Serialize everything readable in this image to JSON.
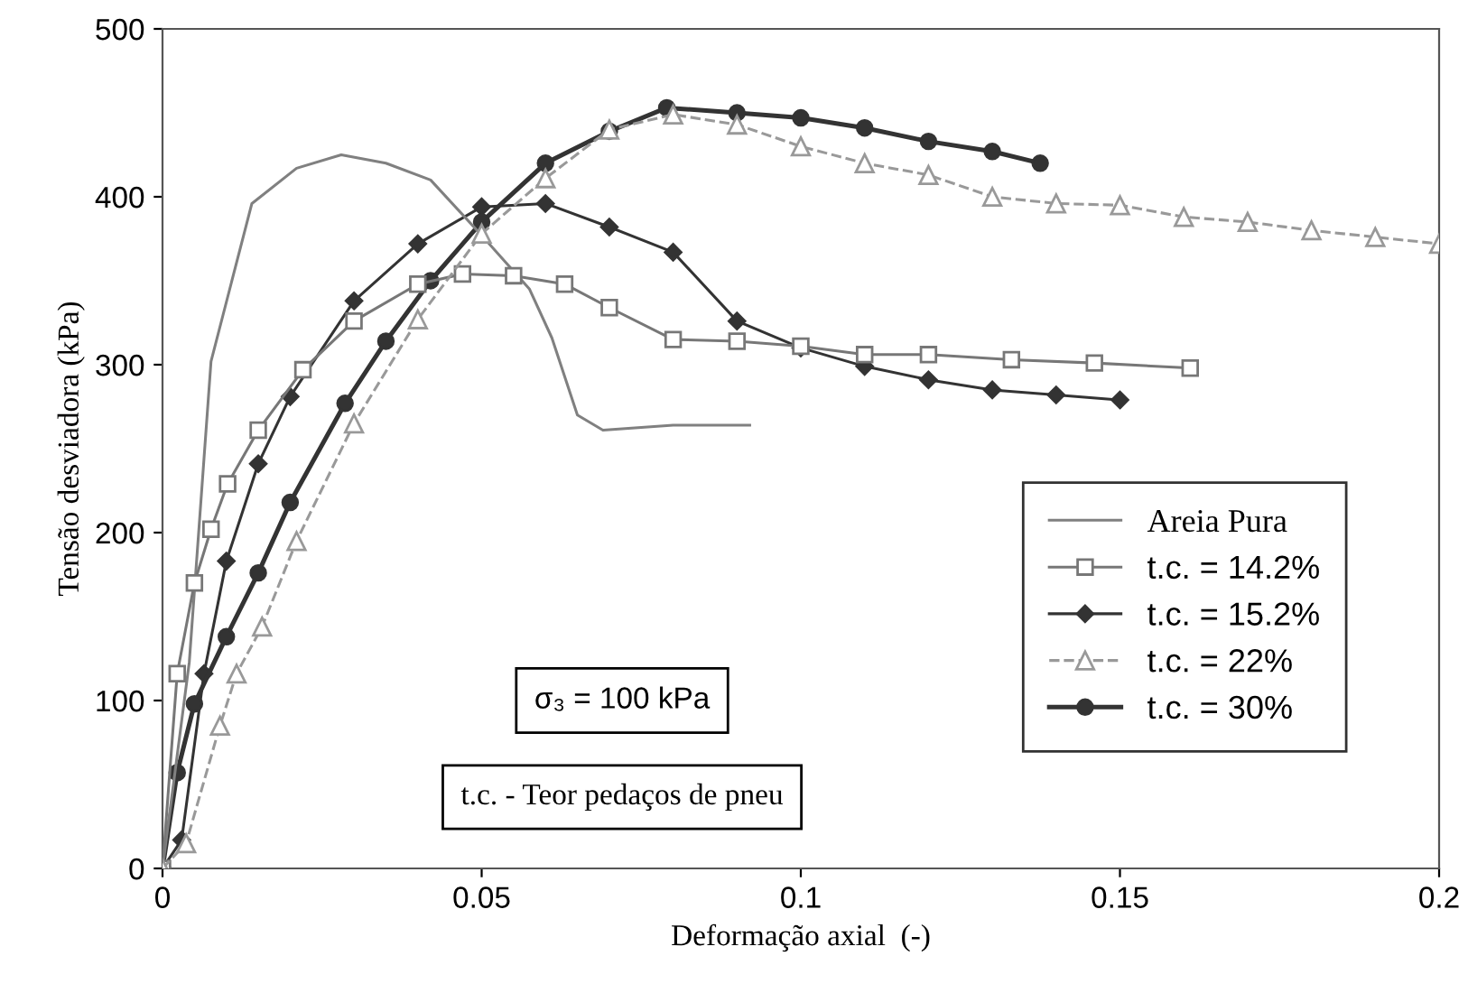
{
  "chart_data": {
    "type": "line",
    "xlabel": "Deformação axial  (-)",
    "ylabel": "Tensão desviadora (kPa)",
    "xlim": [
      0,
      0.2
    ],
    "ylim": [
      0,
      500
    ],
    "xticks": [
      0,
      0.05,
      0.1,
      0.15,
      0.2
    ],
    "yticks": [
      0,
      100,
      200,
      300,
      400,
      500
    ],
    "grid": false,
    "legend": "bottom right",
    "annotations": [
      "σ₃ = 100 kPa",
      "t.c. - Teor pedaços de pneu"
    ],
    "series": [
      {
        "name": "Areia Pura",
        "color": "#808080",
        "marker": "none",
        "line_style": "solid",
        "x": [
          0,
          0.0042,
          0.0076,
          0.014,
          0.021,
          0.028,
          0.035,
          0.042,
          0.05,
          0.0575,
          0.061,
          0.065,
          0.069,
          0.08,
          0.092
        ],
        "values": [
          0,
          123,
          302,
          396,
          417,
          425,
          420,
          410,
          377,
          345,
          316,
          270,
          261,
          264,
          264
        ]
      },
      {
        "name": "t.c. = 14.2%",
        "color": "#777777",
        "marker": "square",
        "line_style": "solid",
        "x": [
          0,
          0.0023,
          0.005,
          0.0076,
          0.0102,
          0.015,
          0.022,
          0.03,
          0.04,
          0.047,
          0.055,
          0.063,
          0.07,
          0.08,
          0.09,
          0.1,
          0.11,
          0.12,
          0.133,
          0.146,
          0.161
        ],
        "values": [
          0,
          116,
          170,
          202,
          229,
          261,
          297,
          326,
          348,
          354,
          353,
          348,
          334,
          315,
          314,
          311,
          306,
          306,
          303,
          301,
          298
        ]
      },
      {
        "name": "t.c. = 15.2%",
        "color": "#333333",
        "marker": "diamond",
        "line_style": "solid",
        "x": [
          0,
          0.003,
          0.0065,
          0.01,
          0.015,
          0.02,
          0.03,
          0.04,
          0.05,
          0.06,
          0.07,
          0.08,
          0.09,
          0.1,
          0.11,
          0.12,
          0.13,
          0.14,
          0.15
        ],
        "values": [
          0,
          17,
          116,
          183,
          241,
          281,
          338,
          372,
          394,
          396,
          382,
          367,
          326,
          310,
          299,
          291,
          285,
          282,
          279
        ]
      },
      {
        "name": "t.c. = 22%",
        "color": "#999999",
        "marker": "triangle",
        "line_style": "dashed",
        "x": [
          0,
          0.0037,
          0.009,
          0.0116,
          0.0156,
          0.021,
          0.03,
          0.04,
          0.05,
          0.06,
          0.07,
          0.08,
          0.09,
          0.1,
          0.11,
          0.12,
          0.13,
          0.14,
          0.15,
          0.16,
          0.17,
          0.18,
          0.19,
          0.2
        ],
        "values": [
          0,
          15,
          85,
          116,
          144,
          195,
          265,
          327,
          378,
          411,
          440,
          449,
          443,
          430,
          420,
          413,
          400,
          396,
          395,
          388,
          385,
          380,
          376,
          372
        ]
      },
      {
        "name": "t.c. = 30%",
        "color": "#333333",
        "marker": "circle",
        "line_style": "solid",
        "x": [
          0,
          0.0023,
          0.005,
          0.01,
          0.015,
          0.02,
          0.0286,
          0.035,
          0.042,
          0.05,
          0.06,
          0.07,
          0.079,
          0.09,
          0.1,
          0.11,
          0.12,
          0.13,
          0.1375
        ],
        "values": [
          0,
          57,
          98,
          138,
          176,
          218,
          277,
          314,
          350,
          385,
          420,
          439,
          453,
          450,
          447,
          441,
          433,
          427,
          420
        ]
      }
    ]
  }
}
